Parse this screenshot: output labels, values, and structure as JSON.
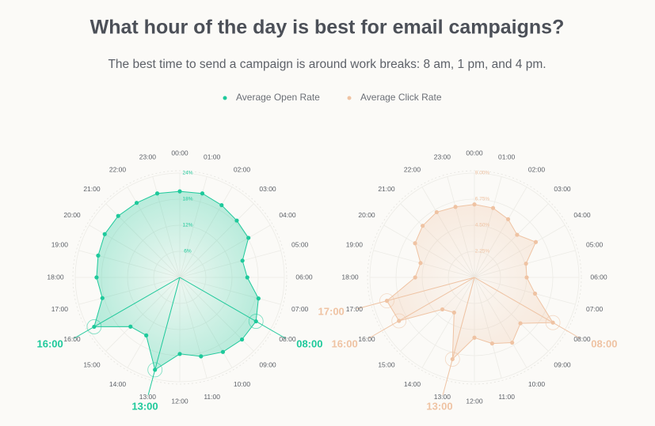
{
  "title": "What hour of the day is best for email campaigns?",
  "subtitle": "The best time to send a campaign is around work breaks: 8 am, 1 pm, and 4 pm.",
  "chart_data": [
    {
      "type": "radar",
      "categories": [
        "00:00",
        "01:00",
        "02:00",
        "03:00",
        "04:00",
        "05:00",
        "06:00",
        "07:00",
        "08:00",
        "09:00",
        "10:00",
        "11:00",
        "12:00",
        "13:00",
        "14:00",
        "15:00",
        "16:00",
        "17:00",
        "18:00",
        "19:00",
        "20:00",
        "21:00",
        "22:00",
        "23:00"
      ],
      "series": [
        {
          "name": "Average Open Rate",
          "color": "#1ec99b",
          "values": [
            19.8,
            20,
            19.2,
            18.5,
            18.2,
            14.9,
            15.5,
            18.7,
            20.2,
            20.2,
            19.8,
            18.8,
            17.6,
            22,
            15.4,
            16,
            22.7,
            18.4,
            19.1,
            19.4,
            19.9,
            20,
            19.8,
            20
          ]
        }
      ],
      "rlim": [
        0,
        24
      ],
      "rticks": [
        {
          "value": 6,
          "label": "6%"
        },
        {
          "value": 12,
          "label": "12%"
        },
        {
          "value": 18,
          "label": "18%"
        },
        {
          "value": 24,
          "label": "24%"
        }
      ],
      "highlights": [
        "08:00",
        "13:00",
        "16:00"
      ]
    },
    {
      "type": "radar",
      "categories": [
        "00:00",
        "01:00",
        "02:00",
        "03:00",
        "04:00",
        "05:00",
        "06:00",
        "07:00",
        "08:00",
        "09:00",
        "10:00",
        "11:00",
        "12:00",
        "13:00",
        "14:00",
        "15:00",
        "16:00",
        "17:00",
        "18:00",
        "19:00",
        "20:00",
        "21:00",
        "22:00",
        "23:00"
      ],
      "series": [
        {
          "name": "Average Click Rate",
          "color": "#efc3a3",
          "values": [
            6.3,
            6.2,
            5.8,
            5.2,
            6.1,
            4.6,
            4.5,
            5.4,
            7.8,
            5.6,
            6.5,
            5.9,
            5.2,
            7.3,
            3.5,
            3.9,
            7.5,
            7.8,
            5.1,
            4.8,
            5.9,
            6.3,
            6.5,
            6.3
          ]
        }
      ],
      "rlim": [
        0,
        9
      ],
      "rticks": [
        {
          "value": 2.25,
          "label": "2.25%"
        },
        {
          "value": 4.5,
          "label": "4.50%"
        },
        {
          "value": 6.75,
          "label": "6.75%"
        },
        {
          "value": 9,
          "label": "9.00%"
        }
      ],
      "highlights": [
        "08:00",
        "13:00",
        "16:00",
        "17:00"
      ]
    }
  ]
}
